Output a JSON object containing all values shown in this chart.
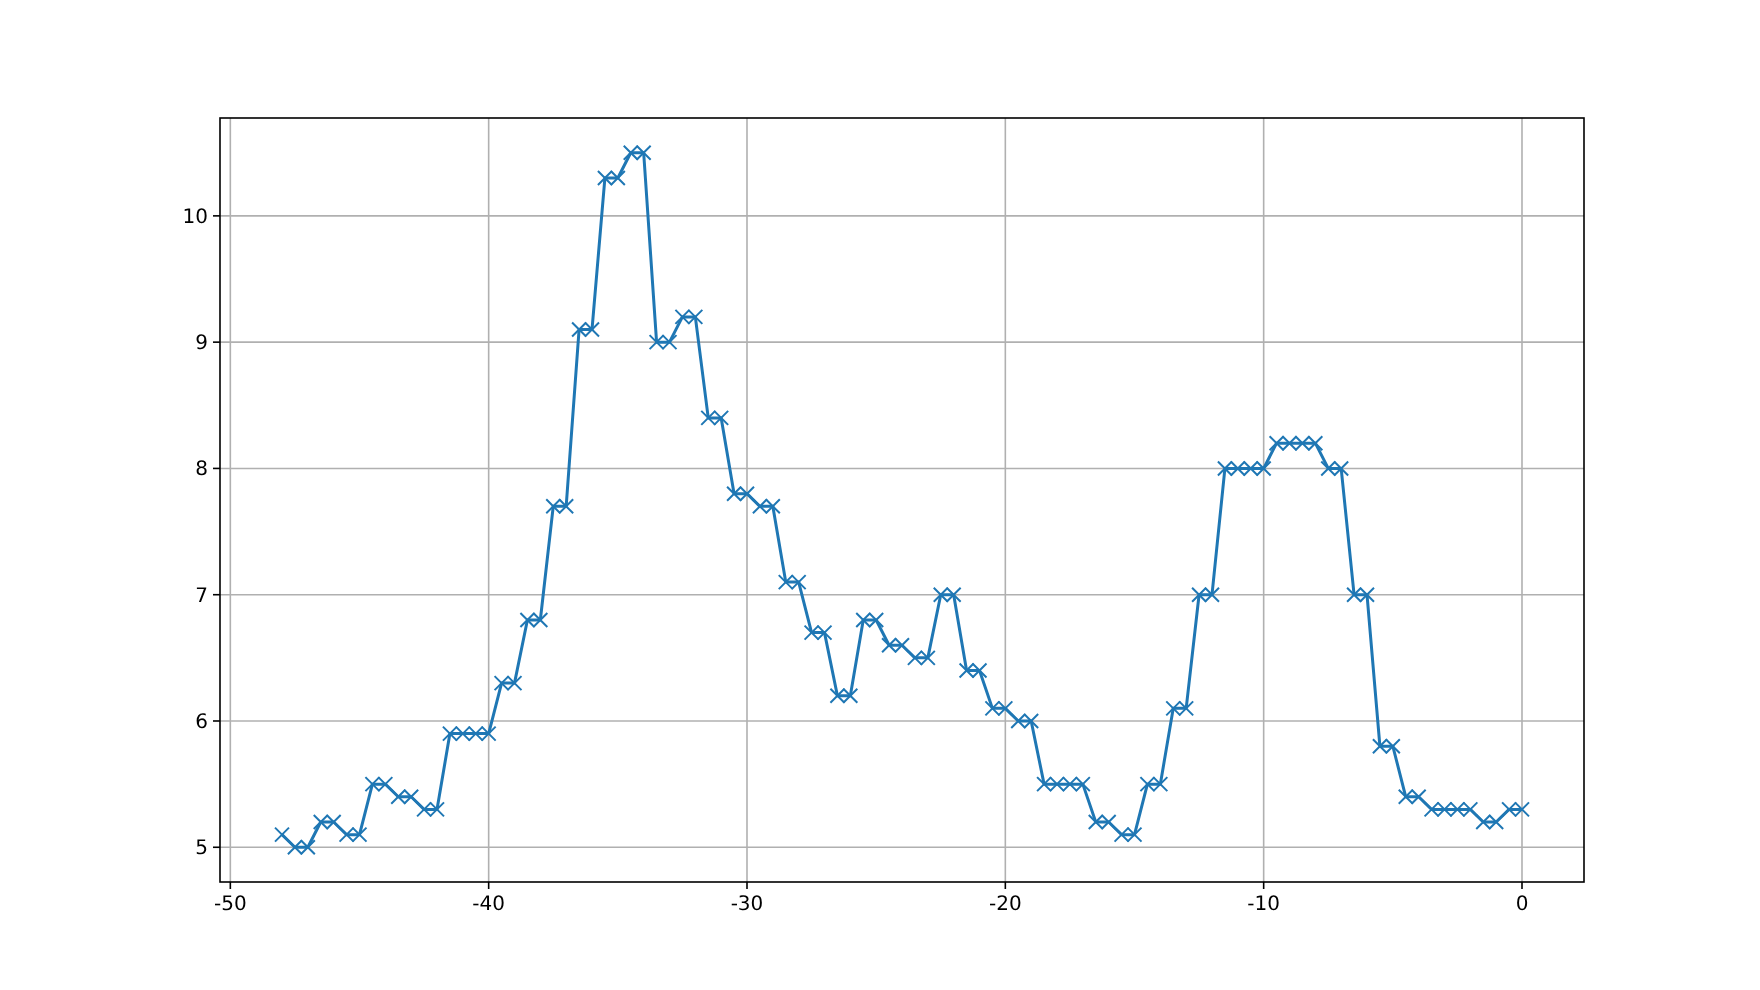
{
  "chart_data": {
    "type": "line",
    "marker": "cross",
    "line_style": "solid",
    "grid": true,
    "xlim": [
      -50.4,
      2.4
    ],
    "xticks": [
      -50,
      -40,
      -30,
      -20,
      -10,
      0
    ],
    "ylim": [
      4.725,
      10.775
    ],
    "yticks": [
      5,
      6,
      7,
      8,
      9,
      10
    ],
    "x": [
      -48,
      -47.5,
      -47,
      -46.5,
      -46,
      -45.5,
      -45,
      -44.5,
      -44,
      -43.5,
      -43,
      -42.5,
      -42,
      -41.5,
      -41,
      -40.5,
      -40,
      -39.5,
      -39,
      -38.5,
      -38,
      -37.5,
      -37,
      -36.5,
      -36,
      -35.5,
      -35,
      -34.5,
      -34,
      -33.5,
      -33,
      -32.5,
      -32,
      -31.5,
      -31,
      -30.5,
      -30,
      -29.5,
      -29,
      -28.5,
      -28,
      -27.5,
      -27,
      -26.5,
      -26,
      -25.5,
      -25,
      -24.5,
      -24,
      -23.5,
      -23,
      -22.5,
      -22,
      -21.5,
      -21,
      -20.5,
      -20,
      -19.5,
      -19,
      -18.5,
      -18,
      -17.5,
      -17,
      -16.5,
      -16,
      -15.5,
      -15,
      -14.5,
      -14,
      -13.5,
      -13,
      -12.5,
      -12,
      -11.5,
      -11,
      -10.5,
      -10,
      -9.5,
      -9,
      -8.5,
      -8,
      -7.5,
      -7,
      -6.5,
      -6,
      -5.5,
      -5,
      -4.5,
      -4,
      -3.5,
      -3,
      -2.5,
      -2,
      -1.5,
      -1,
      -0.5,
      0
    ],
    "series": [
      {
        "color": "#1f77b4",
        "values": [
          5.1,
          5.0,
          5.0,
          5.2,
          5.2,
          5.1,
          5.1,
          5.5,
          5.5,
          5.4,
          5.4,
          5.3,
          5.3,
          5.9,
          5.9,
          5.9,
          5.9,
          6.3,
          6.3,
          6.8,
          6.8,
          7.7,
          7.7,
          9.1,
          9.1,
          10.3,
          10.3,
          10.5,
          10.5,
          9.0,
          9.0,
          9.2,
          9.2,
          8.4,
          8.4,
          7.8,
          7.8,
          7.7,
          7.7,
          7.1,
          7.1,
          6.7,
          6.7,
          6.2,
          6.2,
          6.8,
          6.8,
          6.6,
          6.6,
          6.5,
          6.5,
          7.0,
          7.0,
          6.4,
          6.4,
          6.1,
          6.1,
          6.0,
          6.0,
          5.5,
          5.5,
          5.5,
          5.5,
          5.2,
          5.2,
          5.1,
          5.1,
          5.5,
          5.5,
          6.1,
          6.1,
          7.0,
          7.0,
          8.0,
          8.0,
          8.0,
          8.0,
          8.2,
          8.2,
          8.2,
          8.2,
          8.0,
          8.0,
          7.0,
          7.0,
          5.8,
          5.8,
          5.4,
          5.4,
          5.3,
          5.3,
          5.3,
          5.3,
          5.2,
          5.2,
          5.3,
          5.3
        ]
      }
    ]
  }
}
